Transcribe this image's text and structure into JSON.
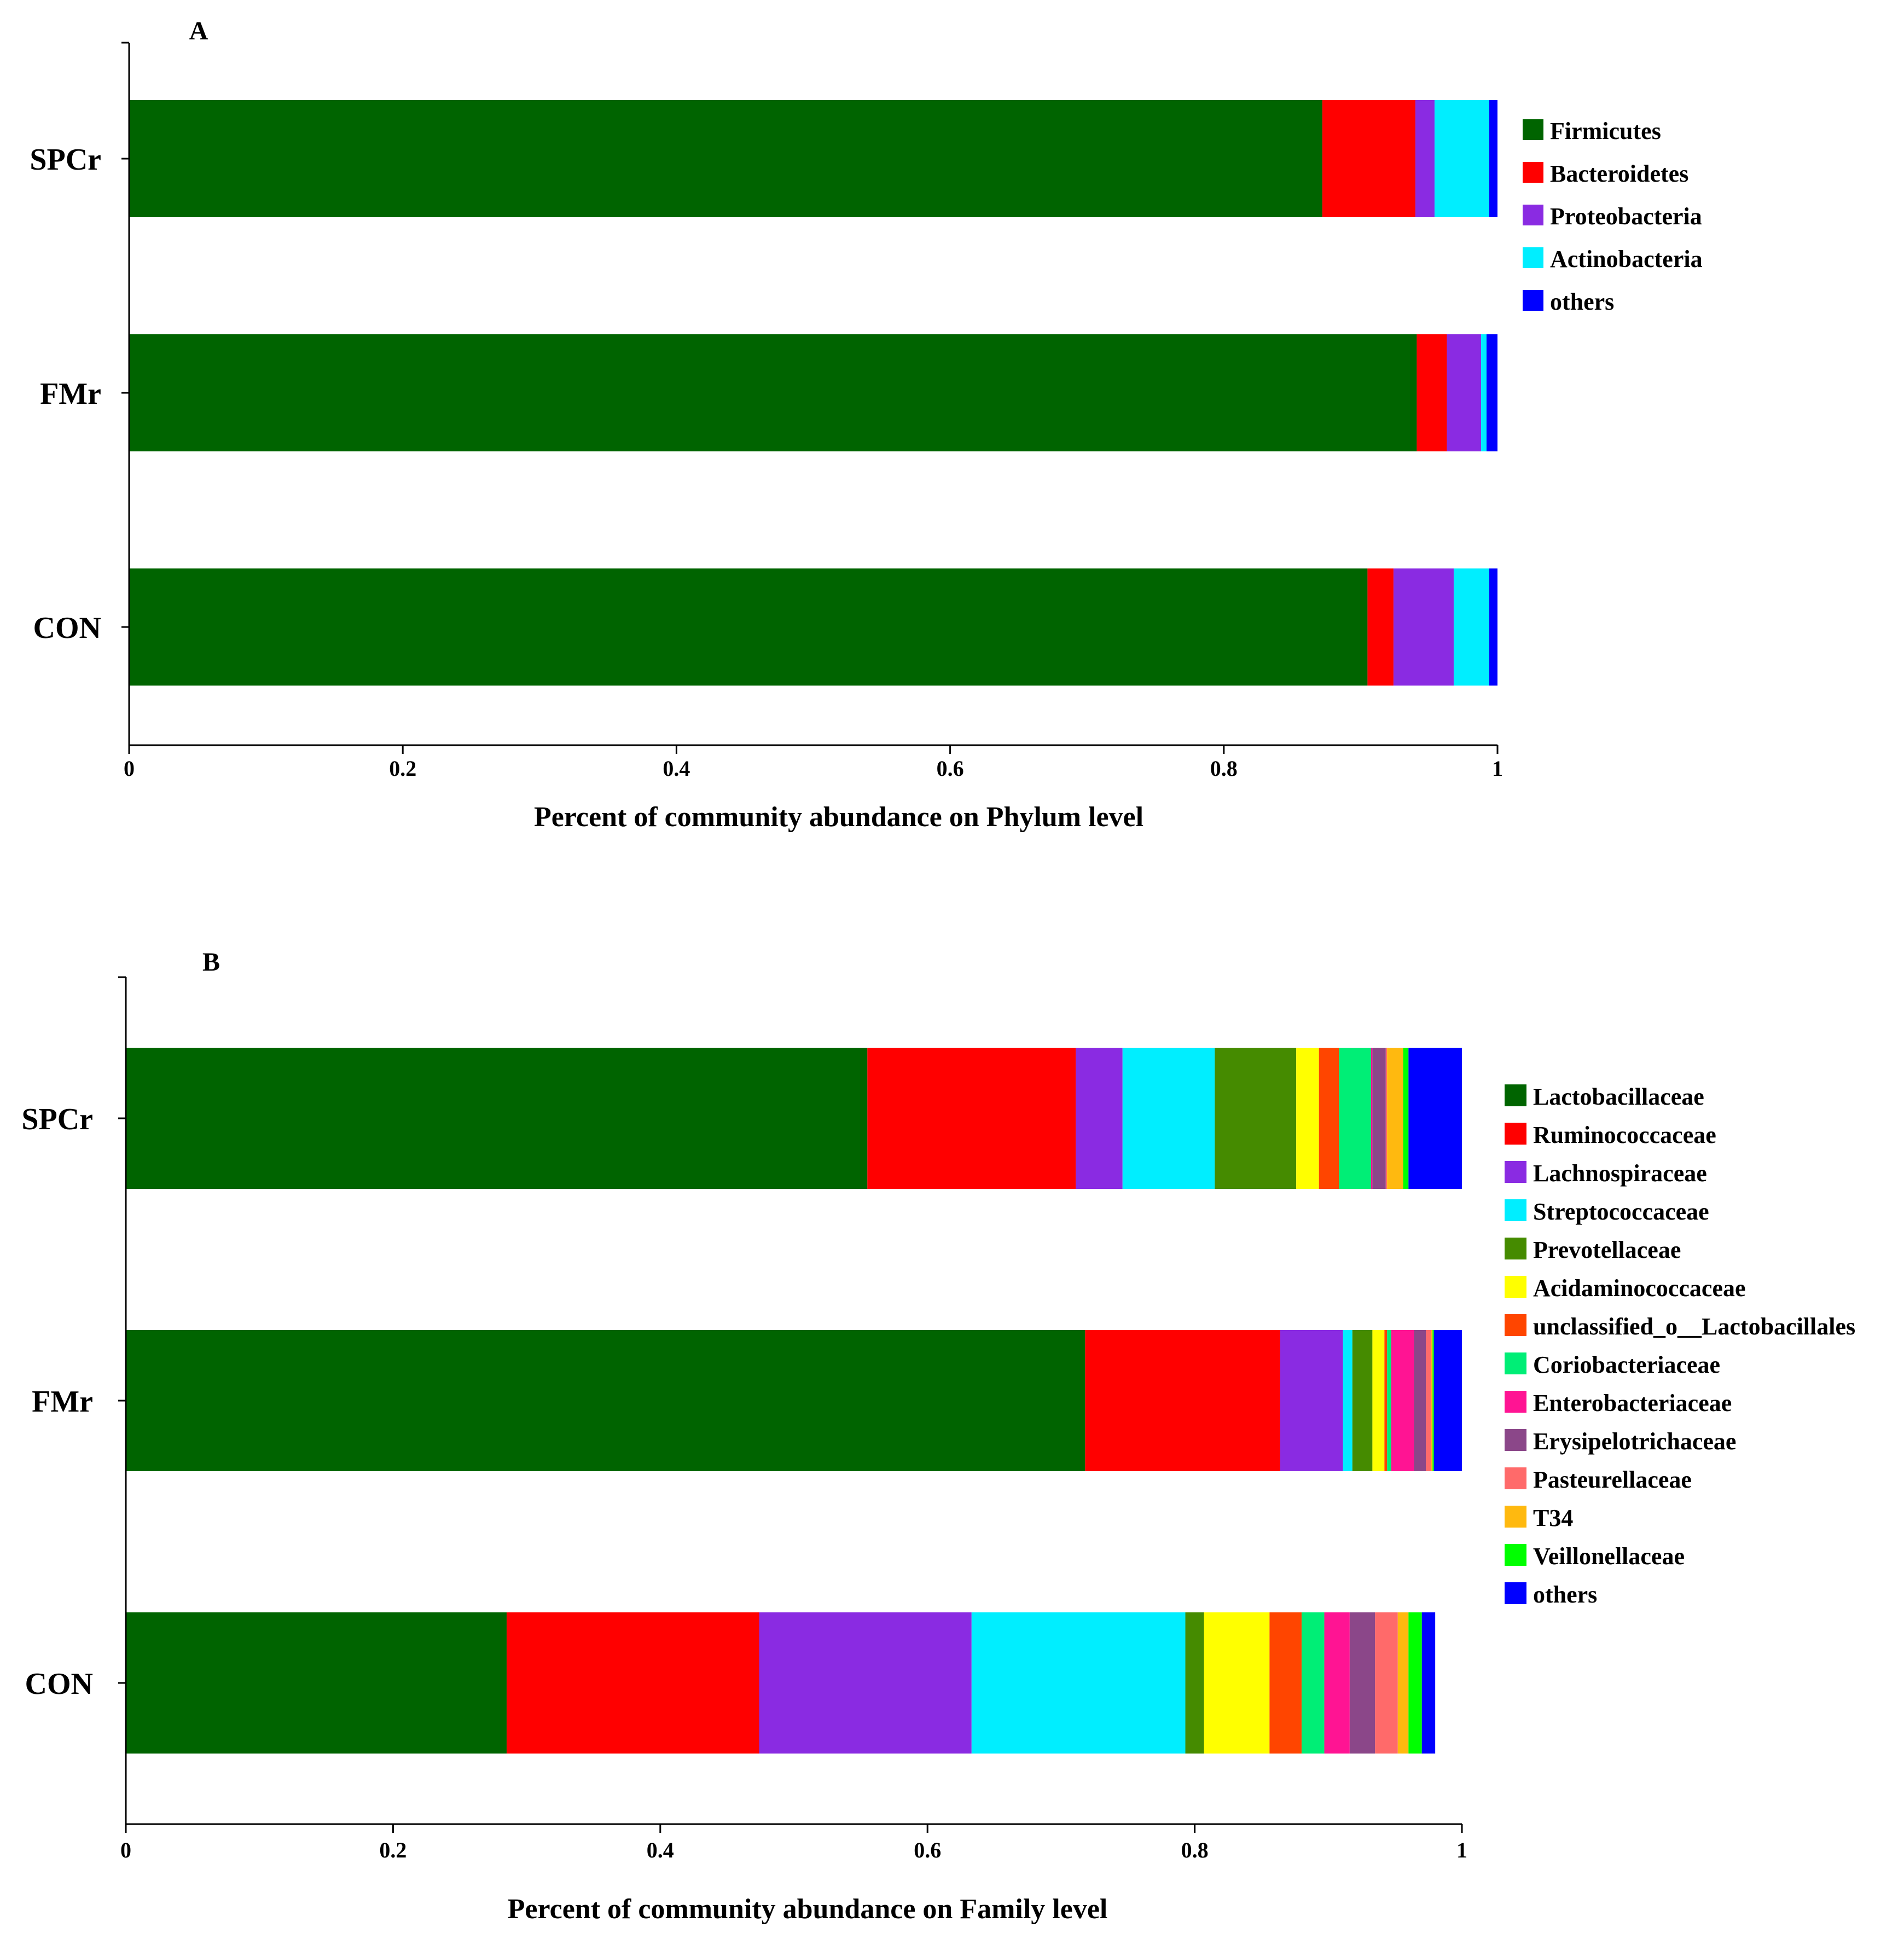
{
  "chart_data": [
    {
      "type": "bar",
      "orientation": "horizontal",
      "stacked": true,
      "panel": "A",
      "title": "A",
      "xlabel": "Percent of community abundance on Phylum level",
      "ylabel": "",
      "xlim": [
        0,
        1
      ],
      "xticks": [
        "0",
        "0.2",
        "0.4",
        "0.6",
        "0.8",
        "1"
      ],
      "categories": [
        "SPCr",
        "FMr",
        "CON"
      ],
      "legend_position": "right",
      "series": [
        {
          "name": "Firmicutes",
          "color": "#006400",
          "values": [
            0.872,
            0.941,
            0.905
          ]
        },
        {
          "name": "Bacteroidetes",
          "color": "#ff0000",
          "values": [
            0.068,
            0.022,
            0.019
          ]
        },
        {
          "name": "Proteobacteria",
          "color": "#8a2be2",
          "values": [
            0.014,
            0.025,
            0.044
          ]
        },
        {
          "name": "Actinobacteria",
          "color": "#00eeff",
          "values": [
            0.04,
            0.004,
            0.026
          ]
        },
        {
          "name": "others",
          "color": "#0000ff",
          "values": [
            0.006,
            0.008,
            0.006
          ]
        }
      ]
    },
    {
      "type": "bar",
      "orientation": "horizontal",
      "stacked": true,
      "panel": "B",
      "title": "B",
      "xlabel": "Percent of community abundance on Family level",
      "ylabel": "",
      "xlim": [
        0,
        1
      ],
      "xticks": [
        "0",
        "0.2",
        "0.4",
        "0.6",
        "0.8",
        "1"
      ],
      "categories": [
        "SPCr",
        "FMr",
        "CON"
      ],
      "legend_position": "right",
      "series": [
        {
          "name": "Lactobacillaceae",
          "color": "#006400",
          "values": [
            0.555,
            0.718,
            0.285
          ]
        },
        {
          "name": "Ruminococcaceae",
          "color": "#ff0000",
          "values": [
            0.156,
            0.146,
            0.189
          ]
        },
        {
          "name": "Lachnospiraceae",
          "color": "#8a2be2",
          "values": [
            0.035,
            0.047,
            0.159
          ]
        },
        {
          "name": "Streptococcaceae",
          "color": "#00eeff",
          "values": [
            0.069,
            0.007,
            0.16
          ]
        },
        {
          "name": "Prevotellaceae",
          "color": "#458b00",
          "values": [
            0.061,
            0.015,
            0.014
          ]
        },
        {
          "name": "Acidaminococcaceae",
          "color": "#ffff00",
          "values": [
            0.017,
            0.009,
            0.049
          ]
        },
        {
          "name": "unclassified_o__Lactobacillales",
          "color": "#ff4500",
          "values": [
            0.015,
            0.002,
            0.024
          ]
        },
        {
          "name": "Coriobacteriaceae",
          "color": "#00ee76",
          "values": [
            0.024,
            0.003,
            0.017
          ]
        },
        {
          "name": "Enterobacteriaceae",
          "color": "#ff1493",
          "values": [
            0.001,
            0.017,
            0.019
          ]
        },
        {
          "name": "Erysipelotrichaceae",
          "color": "#8b4789",
          "values": [
            0.01,
            0.009,
            0.019
          ]
        },
        {
          "name": "Pasteurellaceae",
          "color": "#ff6a6a",
          "values": [
            0.001,
            0.004,
            0.017
          ]
        },
        {
          "name": "T34",
          "color": "#ffb90f",
          "values": [
            0.012,
            0.001,
            0.008
          ]
        },
        {
          "name": "Veillonellaceae",
          "color": "#00ff00",
          "values": [
            0.004,
            0.001,
            0.01
          ]
        },
        {
          "name": "others",
          "color": "#0000ff",
          "values": [
            0.04,
            0.021,
            0.01
          ]
        }
      ]
    }
  ]
}
